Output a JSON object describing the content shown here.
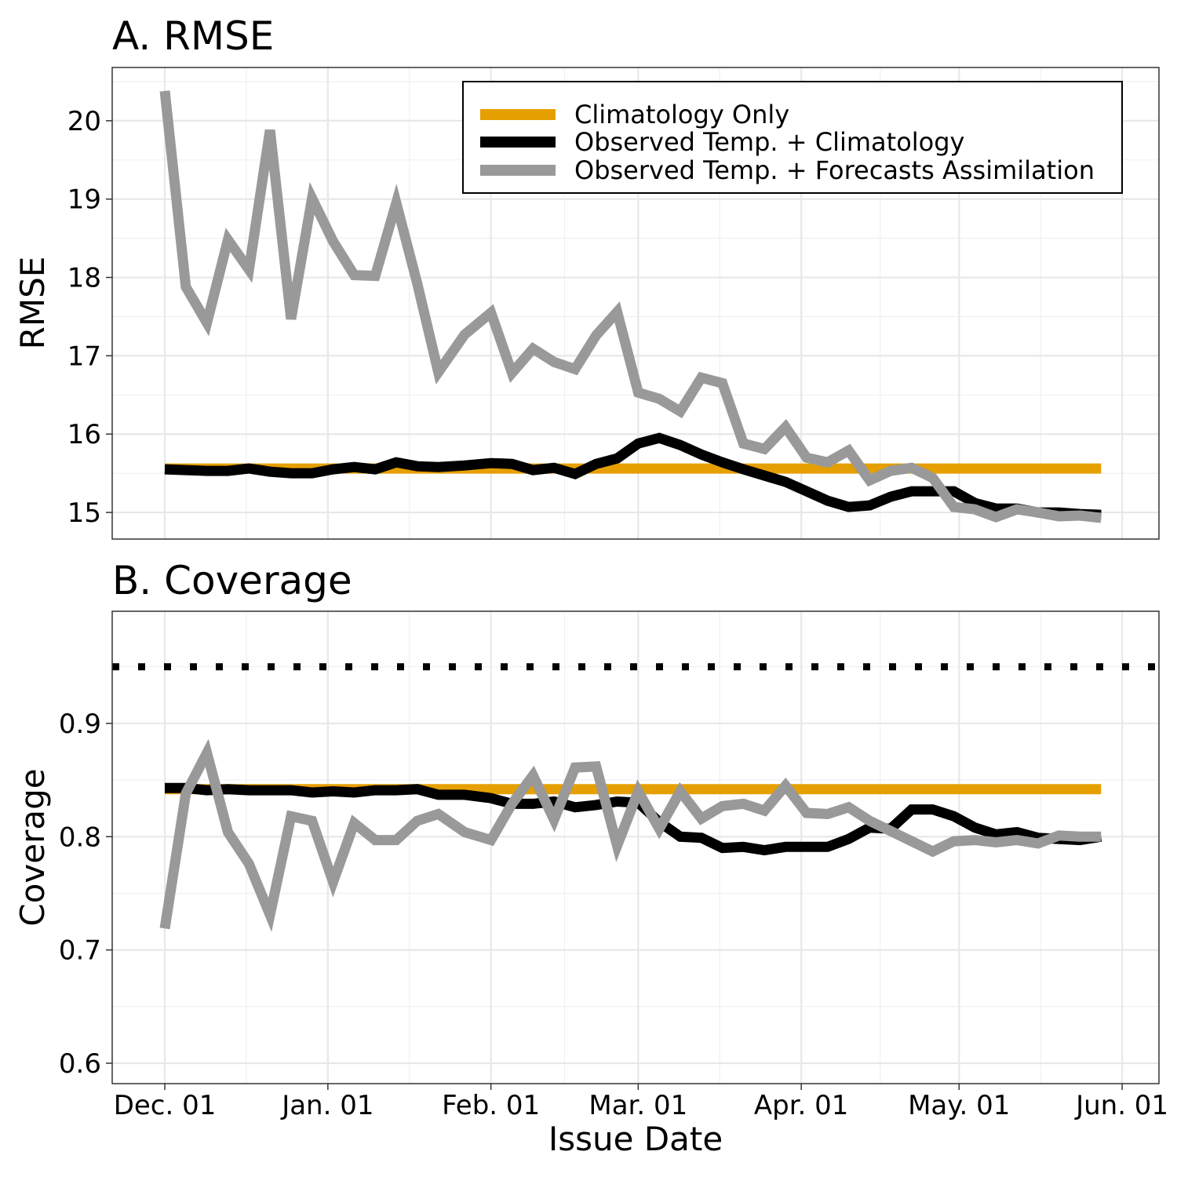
{
  "x_axis": {
    "label": "Issue Date",
    "ticks": [
      {
        "date": "2020-12-01",
        "label": "Dec. 01"
      },
      {
        "date": "2021-01-01",
        "label": "Jan. 01"
      },
      {
        "date": "2021-02-01",
        "label": "Feb. 01"
      },
      {
        "date": "2021-03-01",
        "label": "Mar. 01"
      },
      {
        "date": "2021-04-01",
        "label": "Apr. 01"
      },
      {
        "date": "2021-05-01",
        "label": "May. 01"
      },
      {
        "date": "2021-06-01",
        "label": "Jun. 01"
      }
    ],
    "xlim": [
      "2020-11-21",
      "2021-06-08"
    ]
  },
  "legend": {
    "placement": "top-right of panel A",
    "entries": [
      {
        "label": "Climatology Only",
        "color": "#E69F00"
      },
      {
        "label": "Observed Temp. + Climatology",
        "color": "#000000"
      },
      {
        "label": "Observed Temp. + Forecasts Assimilation",
        "color": "#999999"
      }
    ]
  },
  "chart_data": [
    {
      "type": "line",
      "title": "A. RMSE",
      "ylabel": "RMSE",
      "ylim": [
        14.66,
        20.68
      ],
      "yticks": [
        15,
        16,
        17,
        18,
        19,
        20
      ],
      "grid": true,
      "x": [
        "2020-12-01",
        "2020-12-05",
        "2020-12-09",
        "2020-12-13",
        "2020-12-17",
        "2020-12-21",
        "2020-12-25",
        "2020-12-29",
        "2021-01-02",
        "2021-01-06",
        "2021-01-10",
        "2021-01-14",
        "2021-01-18",
        "2021-01-22",
        "2021-01-27",
        "2021-02-01",
        "2021-02-05",
        "2021-02-09",
        "2021-02-13",
        "2021-02-17",
        "2021-02-21",
        "2021-02-25",
        "2021-03-01",
        "2021-03-05",
        "2021-03-09",
        "2021-03-13",
        "2021-03-17",
        "2021-03-21",
        "2021-03-25",
        "2021-03-29",
        "2021-04-02",
        "2021-04-06",
        "2021-04-10",
        "2021-04-14",
        "2021-04-18",
        "2021-04-22",
        "2021-04-26",
        "2021-04-30",
        "2021-05-04",
        "2021-05-08",
        "2021-05-12",
        "2021-05-16",
        "2021-05-20",
        "2021-05-24",
        "2021-05-28"
      ],
      "series": [
        {
          "name": "Climatology Only",
          "color": "#E69F00",
          "values": [
            15.56,
            15.56,
            15.56,
            15.56,
            15.56,
            15.56,
            15.56,
            15.56,
            15.56,
            15.56,
            15.56,
            15.56,
            15.56,
            15.56,
            15.56,
            15.56,
            15.56,
            15.56,
            15.56,
            15.56,
            15.56,
            15.56,
            15.56,
            15.56,
            15.56,
            15.56,
            15.56,
            15.56,
            15.56,
            15.56,
            15.56,
            15.56,
            15.56,
            15.56,
            15.56,
            15.56,
            15.56,
            15.56,
            15.56,
            15.56,
            15.56,
            15.56,
            15.56,
            15.56,
            15.56
          ]
        },
        {
          "name": "Observed Temp. + Climatology",
          "color": "#000000",
          "values": [
            15.55,
            15.54,
            15.53,
            15.53,
            15.56,
            15.52,
            15.5,
            15.5,
            15.55,
            15.58,
            15.55,
            15.64,
            15.59,
            15.58,
            15.6,
            15.63,
            15.62,
            15.54,
            15.57,
            15.49,
            15.62,
            15.69,
            15.88,
            15.95,
            15.86,
            15.74,
            15.64,
            15.55,
            15.47,
            15.39,
            15.27,
            15.15,
            15.07,
            15.09,
            15.2,
            15.27,
            15.27,
            15.27,
            15.12,
            15.05,
            15.05,
            15.0,
            15.0,
            14.98,
            14.97
          ]
        },
        {
          "name": "Observed Temp. + Forecasts Assimilation",
          "color": "#999999",
          "values": [
            20.38,
            17.88,
            17.42,
            18.48,
            18.1,
            19.88,
            17.47,
            19.01,
            18.46,
            18.03,
            18.02,
            18.95,
            17.92,
            16.79,
            17.27,
            17.55,
            16.78,
            17.09,
            16.92,
            16.83,
            17.26,
            17.56,
            16.53,
            16.45,
            16.29,
            16.72,
            16.65,
            15.88,
            15.81,
            16.09,
            15.7,
            15.64,
            15.79,
            15.41,
            15.53,
            15.57,
            15.44,
            15.07,
            15.04,
            14.94,
            15.04,
            15.0,
            14.95,
            14.96,
            14.93
          ]
        }
      ]
    },
    {
      "type": "line",
      "title": "B. Coverage",
      "ylabel": "Coverage",
      "ylim": [
        0.582,
        0.999
      ],
      "yticks": [
        0.6,
        0.7,
        0.8,
        0.9
      ],
      "grid": true,
      "reference_line": {
        "y": 0.95,
        "style": "dotted",
        "color": "#000000"
      },
      "x": [
        "2020-12-01",
        "2020-12-05",
        "2020-12-09",
        "2020-12-13",
        "2020-12-17",
        "2020-12-21",
        "2020-12-25",
        "2020-12-29",
        "2021-01-02",
        "2021-01-06",
        "2021-01-10",
        "2021-01-14",
        "2021-01-18",
        "2021-01-22",
        "2021-01-27",
        "2021-02-01",
        "2021-02-05",
        "2021-02-09",
        "2021-02-13",
        "2021-02-17",
        "2021-02-21",
        "2021-02-25",
        "2021-03-01",
        "2021-03-05",
        "2021-03-09",
        "2021-03-13",
        "2021-03-17",
        "2021-03-21",
        "2021-03-25",
        "2021-03-29",
        "2021-04-02",
        "2021-04-06",
        "2021-04-10",
        "2021-04-14",
        "2021-04-18",
        "2021-04-22",
        "2021-04-26",
        "2021-04-30",
        "2021-05-04",
        "2021-05-08",
        "2021-05-12",
        "2021-05-16",
        "2021-05-20",
        "2021-05-24",
        "2021-05-28"
      ],
      "series": [
        {
          "name": "Climatology Only",
          "color": "#E69F00",
          "values": [
            0.842,
            0.842,
            0.842,
            0.842,
            0.842,
            0.842,
            0.842,
            0.842,
            0.842,
            0.842,
            0.842,
            0.842,
            0.842,
            0.842,
            0.842,
            0.842,
            0.842,
            0.842,
            0.842,
            0.842,
            0.842,
            0.842,
            0.842,
            0.842,
            0.842,
            0.842,
            0.842,
            0.842,
            0.842,
            0.842,
            0.842,
            0.842,
            0.842,
            0.842,
            0.842,
            0.842,
            0.842,
            0.842,
            0.842,
            0.842,
            0.842,
            0.842,
            0.842,
            0.842,
            0.842
          ]
        },
        {
          "name": "Observed Temp. + Climatology",
          "color": "#000000",
          "values": [
            0.843,
            0.843,
            0.841,
            0.842,
            0.841,
            0.841,
            0.841,
            0.839,
            0.84,
            0.839,
            0.841,
            0.841,
            0.842,
            0.837,
            0.837,
            0.834,
            0.829,
            0.829,
            0.831,
            0.826,
            0.828,
            0.831,
            0.83,
            0.813,
            0.8,
            0.799,
            0.79,
            0.791,
            0.788,
            0.791,
            0.791,
            0.791,
            0.798,
            0.808,
            0.807,
            0.824,
            0.824,
            0.818,
            0.808,
            0.802,
            0.804,
            0.799,
            0.798,
            0.797,
            0.8
          ]
        },
        {
          "name": "Observed Temp. + Forecasts Assimilation",
          "color": "#999999",
          "values": [
            0.719,
            0.838,
            0.874,
            0.804,
            0.776,
            0.731,
            0.818,
            0.814,
            0.76,
            0.812,
            0.797,
            0.797,
            0.814,
            0.82,
            0.804,
            0.797,
            0.829,
            0.854,
            0.815,
            0.861,
            0.862,
            0.792,
            0.84,
            0.807,
            0.84,
            0.816,
            0.827,
            0.829,
            0.823,
            0.845,
            0.821,
            0.82,
            0.826,
            0.814,
            0.805,
            0.796,
            0.787,
            0.796,
            0.797,
            0.795,
            0.797,
            0.794,
            0.801,
            0.8,
            0.8
          ]
        }
      ]
    }
  ]
}
